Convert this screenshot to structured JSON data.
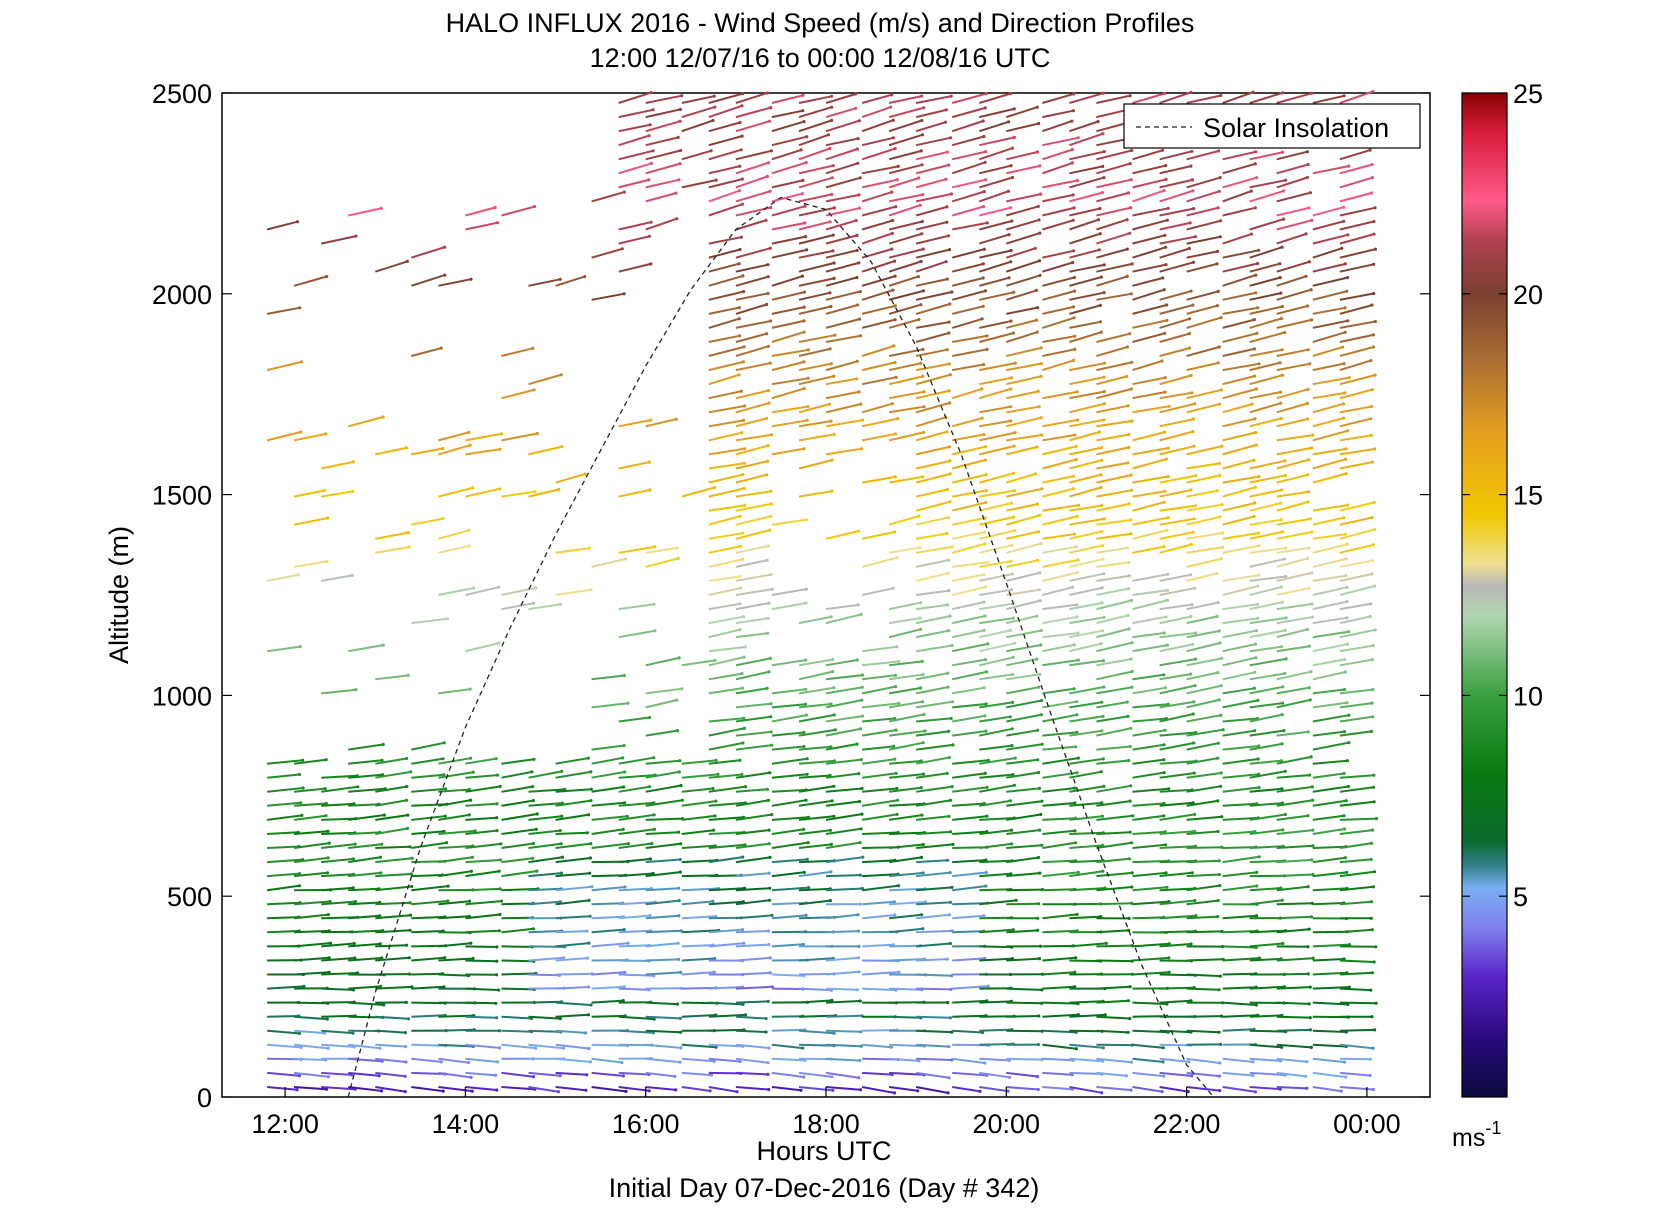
{
  "chart_data": {
    "type": "wind-barb profile (arrows colored by speed)",
    "title": "HALO INFLUX 2016 - Wind Speed (m/s) and Direction Profiles",
    "subtitle": "12:00 12/07/16 to 00:00 12/08/16  UTC",
    "xlabel": "Hours UTC",
    "xlabel2": "Initial Day 07-Dec-2016 (Day # 342)",
    "ylabel": "Altitude (m)",
    "x_unit": "hours UTC",
    "xlim": [
      11.3,
      24.7
    ],
    "ylim": [
      0,
      2500
    ],
    "xticks": [
      {
        "value": 12,
        "label": "12:00"
      },
      {
        "value": 14,
        "label": "14:00"
      },
      {
        "value": 16,
        "label": "16:00"
      },
      {
        "value": 18,
        "label": "18:00"
      },
      {
        "value": 20,
        "label": "20:00"
      },
      {
        "value": 22,
        "label": "22:00"
      },
      {
        "value": 24,
        "label": "00:00"
      }
    ],
    "yticks": [
      {
        "value": 0,
        "label": "0"
      },
      {
        "value": 500,
        "label": "500"
      },
      {
        "value": 1000,
        "label": "1000"
      },
      {
        "value": 1500,
        "label": "1500"
      },
      {
        "value": 2000,
        "label": "2000"
      },
      {
        "value": 2500,
        "label": "2500"
      }
    ],
    "legend": {
      "label": "Solar Insolation",
      "placement": "top-right",
      "style": "dashed black"
    },
    "solar_insolation": {
      "x": [
        12.7,
        13.0,
        13.5,
        14.0,
        14.5,
        15.0,
        15.5,
        16.0,
        16.5,
        17.0,
        17.5,
        18.0,
        18.5,
        19.0,
        19.5,
        20.0,
        20.5,
        21.0,
        21.5,
        22.0,
        22.3
      ],
      "y": [
        0,
        260,
        620,
        920,
        1170,
        1400,
        1610,
        1820,
        2010,
        2160,
        2240,
        2210,
        2080,
        1870,
        1600,
        1280,
        950,
        630,
        330,
        80,
        0
      ]
    },
    "colorbar": {
      "min": 0,
      "max": 25,
      "ticks": [
        "5",
        "10",
        "15",
        "20",
        "25"
      ],
      "unit": "ms",
      "unit_exp": "-1",
      "stops": [
        {
          "v": 0,
          "c": "#0a0a3c"
        },
        {
          "v": 1.5,
          "c": "#2a0a80"
        },
        {
          "v": 3,
          "c": "#5a24c8"
        },
        {
          "v": 4.2,
          "c": "#7f80ee"
        },
        {
          "v": 5.2,
          "c": "#7aaef0"
        },
        {
          "v": 5.8,
          "c": "#2e7f86"
        },
        {
          "v": 6.4,
          "c": "#0a6a2a"
        },
        {
          "v": 8,
          "c": "#087a10"
        },
        {
          "v": 10,
          "c": "#3aa040"
        },
        {
          "v": 12,
          "c": "#b2d6b0"
        },
        {
          "v": 12.7,
          "c": "#b8b8b8"
        },
        {
          "v": 13.3,
          "c": "#f0e090"
        },
        {
          "v": 14.5,
          "c": "#f0c800"
        },
        {
          "v": 16.5,
          "c": "#e6a020"
        },
        {
          "v": 18.5,
          "c": "#a66a34"
        },
        {
          "v": 20,
          "c": "#7a4030"
        },
        {
          "v": 21.3,
          "c": "#b0404e"
        },
        {
          "v": 22.3,
          "c": "#ff5a8a"
        },
        {
          "v": 24,
          "c": "#d81e3c"
        },
        {
          "v": 25,
          "c": "#8a0000"
        }
      ]
    },
    "profile_times": [
      11.8,
      12.1,
      12.4,
      12.7,
      13.0,
      13.4,
      13.7,
      14.0,
      14.4,
      14.7,
      15.0,
      15.4,
      15.7,
      16.0,
      16.4,
      16.7,
      17.0,
      17.4,
      17.7,
      18.0,
      18.4,
      18.7,
      19.0,
      19.4,
      19.7,
      20.0,
      20.4,
      20.7,
      21.0,
      21.4,
      21.7,
      22.0,
      22.4,
      22.7,
      23.0,
      23.4,
      23.7
    ],
    "wind_speed_profiles": [
      {
        "alt": 25,
        "speed": 3.0,
        "dir_deg": 250
      },
      {
        "alt": 100,
        "speed": 4.8,
        "dir_deg": 255
      },
      {
        "alt": 200,
        "speed": 6.5,
        "dir_deg": 260
      },
      {
        "alt": 300,
        "speed": 7.2,
        "dir_deg": 262
      },
      {
        "alt": 400,
        "speed": 7.8,
        "dir_deg": 265
      },
      {
        "alt": 500,
        "speed": 8.2,
        "dir_deg": 268
      },
      {
        "alt": 600,
        "speed": 9.0,
        "dir_deg": 270
      },
      {
        "alt": 700,
        "speed": 8.5,
        "dir_deg": 272
      },
      {
        "alt": 850,
        "speed": 9.5,
        "dir_deg": 275
      },
      {
        "alt": 1000,
        "speed": 10.5,
        "dir_deg": 278
      },
      {
        "alt": 1200,
        "speed": 12.0,
        "dir_deg": 280
      },
      {
        "alt": 1400,
        "speed": 14.5,
        "dir_deg": 282
      },
      {
        "alt": 1600,
        "speed": 16.0,
        "dir_deg": 283
      },
      {
        "alt": 1800,
        "speed": 17.5,
        "dir_deg": 285
      },
      {
        "alt": 2000,
        "speed": 19.5,
        "dir_deg": 286
      },
      {
        "alt": 2200,
        "speed": 21.5,
        "dir_deg": 288
      },
      {
        "alt": 2400,
        "speed": 21.0,
        "dir_deg": 288
      }
    ]
  }
}
